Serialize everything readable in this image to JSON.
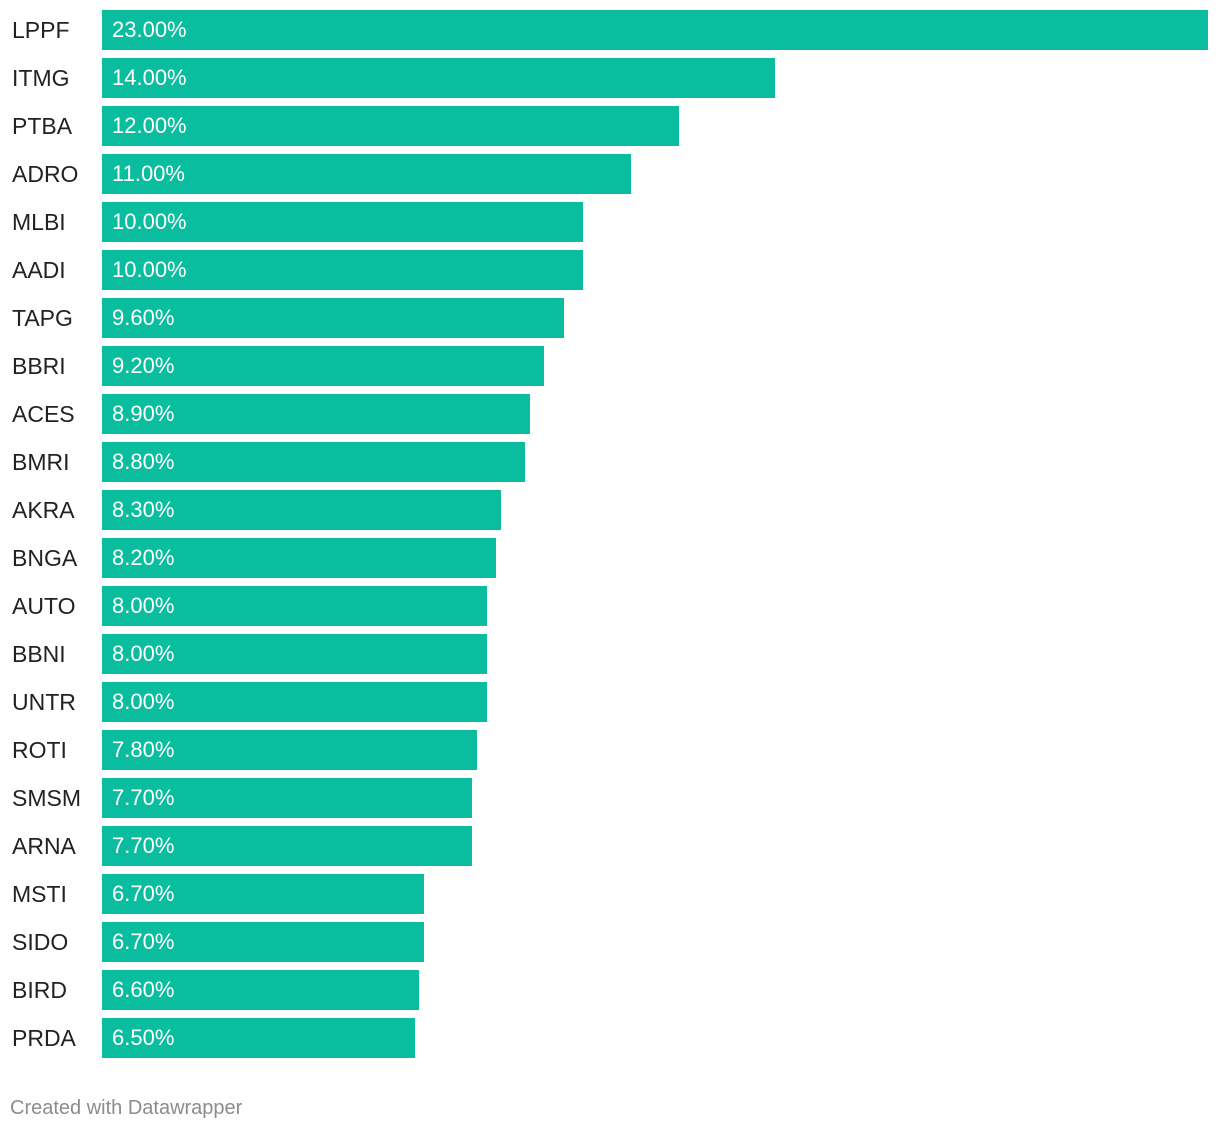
{
  "chart_data": {
    "type": "bar",
    "orientation": "horizontal",
    "categories": [
      "LPPF",
      "ITMG",
      "PTBA",
      "ADRO",
      "MLBI",
      "AADI",
      "TAPG",
      "BBRI",
      "ACES",
      "BMRI",
      "AKRA",
      "BNGA",
      "AUTO",
      "BBNI",
      "UNTR",
      "ROTI",
      "SMSM",
      "ARNA",
      "MSTI",
      "SIDO",
      "BIRD",
      "PRDA"
    ],
    "values": [
      23.0,
      14.0,
      12.0,
      11.0,
      10.0,
      10.0,
      9.6,
      9.2,
      8.9,
      8.8,
      8.3,
      8.2,
      8.0,
      8.0,
      8.0,
      7.8,
      7.7,
      7.7,
      6.7,
      6.7,
      6.6,
      6.5
    ],
    "value_labels": [
      "23.00%",
      "14.00%",
      "12.00%",
      "11.00%",
      "10.00%",
      "10.00%",
      "9.60%",
      "9.20%",
      "8.90%",
      "8.80%",
      "8.30%",
      "8.20%",
      "8.00%",
      "8.00%",
      "8.00%",
      "7.80%",
      "7.70%",
      "7.70%",
      "6.70%",
      "6.70%",
      "6.60%",
      "6.50%"
    ],
    "xlim": [
      0,
      23
    ],
    "unit": "%",
    "bar_color": "#0bbd9f",
    "title": "",
    "xlabel": "",
    "ylabel": ""
  },
  "footer": {
    "credit": "Created with Datawrapper"
  }
}
